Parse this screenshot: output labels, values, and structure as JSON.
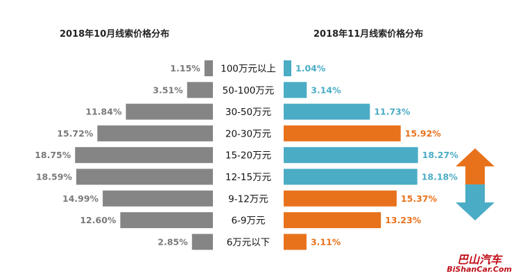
{
  "chart_data": [
    {
      "type": "bar",
      "title": "2018年10月线索价格分布",
      "categories": [
        "100万元以上",
        "50-100万元",
        "30-50万元",
        "20-30万元",
        "15-20万元",
        "12-15万元",
        "9-12万元",
        "6-9万元",
        "6万元以下"
      ],
      "values": [
        1.15,
        3.51,
        11.84,
        15.72,
        18.75,
        18.59,
        14.99,
        12.6,
        2.85
      ],
      "labels": [
        "1.15%",
        "3.51%",
        "11.84%",
        "15.72%",
        "18.75%",
        "18.59%",
        "14.99%",
        "12.60%",
        "2.85%"
      ],
      "bar_color": "#858585",
      "label_color": "#7a7a7a",
      "orientation": "horizontal, mirrored to left"
    },
    {
      "type": "bar",
      "title": "2018年11月线索价格分布",
      "categories": [
        "100万元以上",
        "50-100万元",
        "30-50万元",
        "20-30万元",
        "15-20万元",
        "12-15万元",
        "9-12万元",
        "6-9万元",
        "6万元以下"
      ],
      "values": [
        1.04,
        3.14,
        11.73,
        15.92,
        18.27,
        18.18,
        15.37,
        13.23,
        3.11
      ],
      "labels": [
        "1.04%",
        "3.14%",
        "11.73%",
        "15.92%",
        "18.27%",
        "18.18%",
        "15.37%",
        "13.23%",
        "3.11%"
      ],
      "trend": [
        "down",
        "down",
        "down",
        "up",
        "down",
        "down",
        "up",
        "up",
        "up"
      ],
      "colors": {
        "up": "#e8721c",
        "down": "#4bacc6"
      },
      "orientation": "horizontal, to right"
    }
  ],
  "watermark": {
    "line1": "巴山汽车",
    "line2": "BiShanCar.Com"
  },
  "arrow_icon": "up-down-arrow-icon"
}
